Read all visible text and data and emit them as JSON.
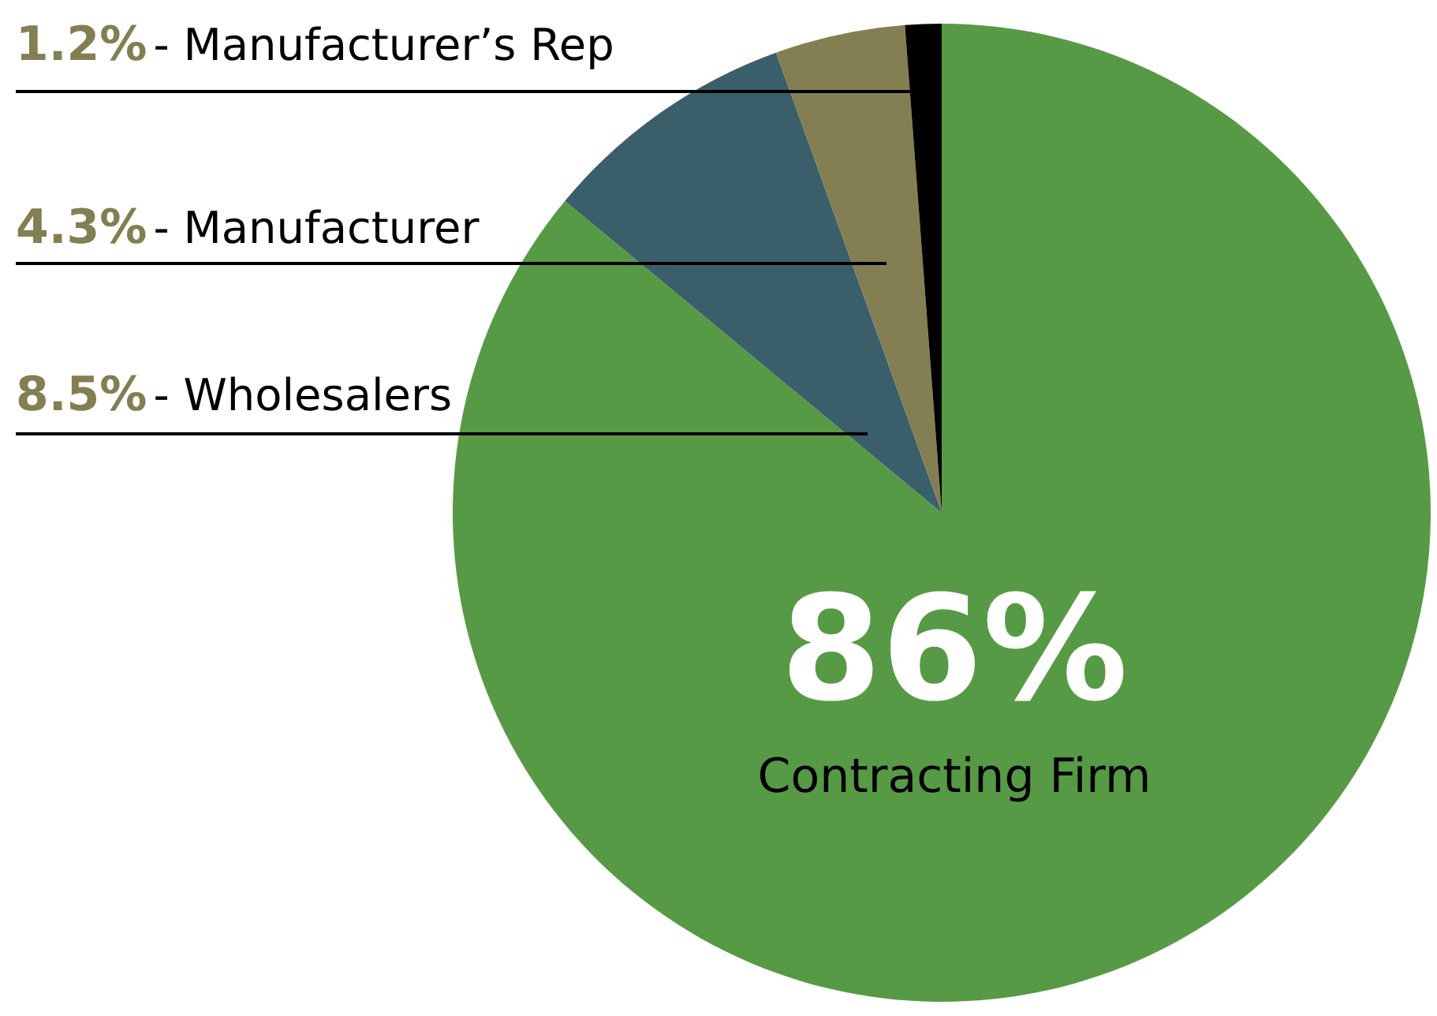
{
  "chart_data": {
    "type": "pie",
    "categories": [
      "Contracting Firm",
      "Wholesalers",
      "Manufacturer",
      "Manufacturer’s Rep"
    ],
    "values": [
      86,
      8.5,
      4.3,
      1.2
    ],
    "colors": [
      "#579a45",
      "#3a5f6a",
      "#837f52",
      "#000000"
    ],
    "value_labels": [
      "86%",
      "8.5%",
      "4.3%",
      "1.2%"
    ],
    "annotations": [
      "-"
    ]
  }
}
